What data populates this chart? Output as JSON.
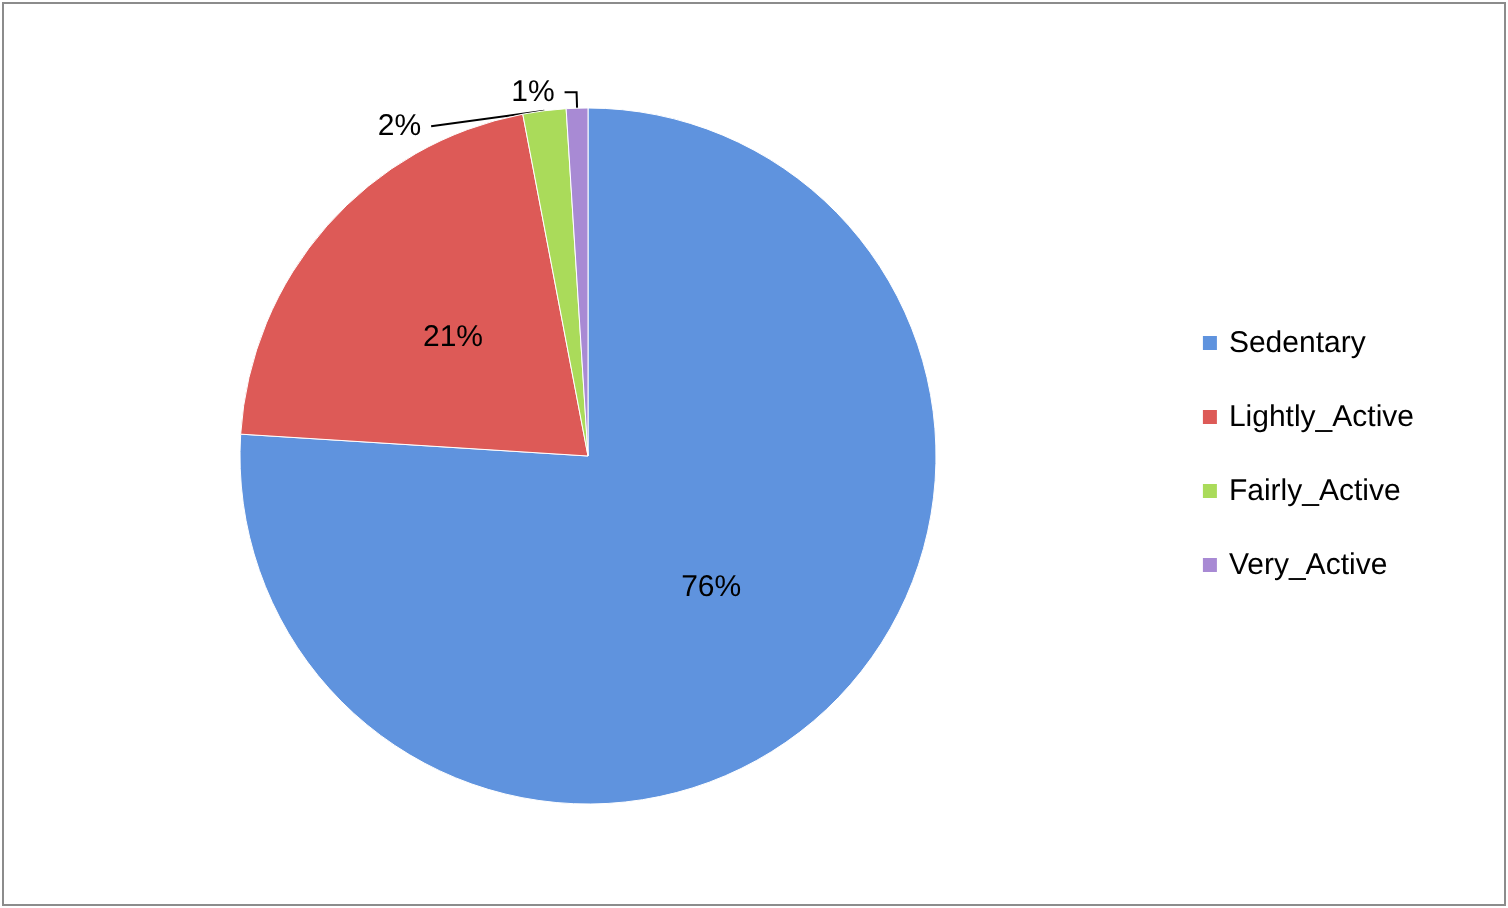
{
  "chart_data": {
    "type": "pie",
    "categories": [
      "Sedentary",
      "Lightly_Active",
      "Fairly_Active",
      "Very_Active"
    ],
    "values": [
      76,
      21,
      2,
      1
    ],
    "value_labels": [
      "76%",
      "21%",
      "2%",
      "1%"
    ],
    "colors": [
      "#5f93de",
      "#dd5a57",
      "#aadb5a",
      "#a88ad4"
    ],
    "legend": "right"
  }
}
